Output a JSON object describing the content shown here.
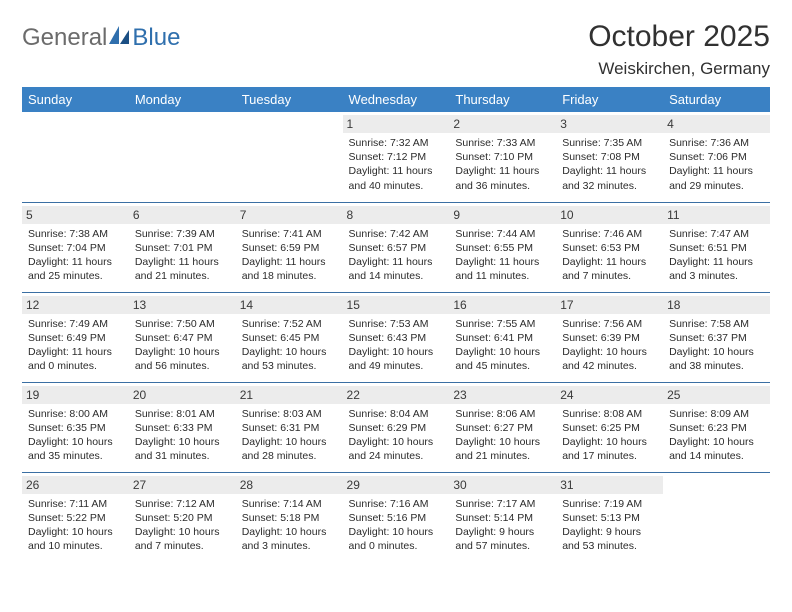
{
  "brand": {
    "part1": "General",
    "part2": "Blue"
  },
  "title": "October 2025",
  "location": "Weiskirchen, Germany",
  "colors": {
    "header_bg": "#3a81c4",
    "row_border": "#3a6fa3",
    "daynum_bg": "#ececec",
    "text": "#2b2b2b",
    "logo_gray": "#6b6b6b",
    "logo_blue": "#2f6fad"
  },
  "day_headers": [
    "Sunday",
    "Monday",
    "Tuesday",
    "Wednesday",
    "Thursday",
    "Friday",
    "Saturday"
  ],
  "weeks": [
    [
      {
        "n": "",
        "sr": "",
        "ss": "",
        "dl": ""
      },
      {
        "n": "",
        "sr": "",
        "ss": "",
        "dl": ""
      },
      {
        "n": "",
        "sr": "",
        "ss": "",
        "dl": ""
      },
      {
        "n": "1",
        "sr": "7:32 AM",
        "ss": "7:12 PM",
        "dl": "11 hours and 40 minutes."
      },
      {
        "n": "2",
        "sr": "7:33 AM",
        "ss": "7:10 PM",
        "dl": "11 hours and 36 minutes."
      },
      {
        "n": "3",
        "sr": "7:35 AM",
        "ss": "7:08 PM",
        "dl": "11 hours and 32 minutes."
      },
      {
        "n": "4",
        "sr": "7:36 AM",
        "ss": "7:06 PM",
        "dl": "11 hours and 29 minutes."
      }
    ],
    [
      {
        "n": "5",
        "sr": "7:38 AM",
        "ss": "7:04 PM",
        "dl": "11 hours and 25 minutes."
      },
      {
        "n": "6",
        "sr": "7:39 AM",
        "ss": "7:01 PM",
        "dl": "11 hours and 21 minutes."
      },
      {
        "n": "7",
        "sr": "7:41 AM",
        "ss": "6:59 PM",
        "dl": "11 hours and 18 minutes."
      },
      {
        "n": "8",
        "sr": "7:42 AM",
        "ss": "6:57 PM",
        "dl": "11 hours and 14 minutes."
      },
      {
        "n": "9",
        "sr": "7:44 AM",
        "ss": "6:55 PM",
        "dl": "11 hours and 11 minutes."
      },
      {
        "n": "10",
        "sr": "7:46 AM",
        "ss": "6:53 PM",
        "dl": "11 hours and 7 minutes."
      },
      {
        "n": "11",
        "sr": "7:47 AM",
        "ss": "6:51 PM",
        "dl": "11 hours and 3 minutes."
      }
    ],
    [
      {
        "n": "12",
        "sr": "7:49 AM",
        "ss": "6:49 PM",
        "dl": "11 hours and 0 minutes."
      },
      {
        "n": "13",
        "sr": "7:50 AM",
        "ss": "6:47 PM",
        "dl": "10 hours and 56 minutes."
      },
      {
        "n": "14",
        "sr": "7:52 AM",
        "ss": "6:45 PM",
        "dl": "10 hours and 53 minutes."
      },
      {
        "n": "15",
        "sr": "7:53 AM",
        "ss": "6:43 PM",
        "dl": "10 hours and 49 minutes."
      },
      {
        "n": "16",
        "sr": "7:55 AM",
        "ss": "6:41 PM",
        "dl": "10 hours and 45 minutes."
      },
      {
        "n": "17",
        "sr": "7:56 AM",
        "ss": "6:39 PM",
        "dl": "10 hours and 42 minutes."
      },
      {
        "n": "18",
        "sr": "7:58 AM",
        "ss": "6:37 PM",
        "dl": "10 hours and 38 minutes."
      }
    ],
    [
      {
        "n": "19",
        "sr": "8:00 AM",
        "ss": "6:35 PM",
        "dl": "10 hours and 35 minutes."
      },
      {
        "n": "20",
        "sr": "8:01 AM",
        "ss": "6:33 PM",
        "dl": "10 hours and 31 minutes."
      },
      {
        "n": "21",
        "sr": "8:03 AM",
        "ss": "6:31 PM",
        "dl": "10 hours and 28 minutes."
      },
      {
        "n": "22",
        "sr": "8:04 AM",
        "ss": "6:29 PM",
        "dl": "10 hours and 24 minutes."
      },
      {
        "n": "23",
        "sr": "8:06 AM",
        "ss": "6:27 PM",
        "dl": "10 hours and 21 minutes."
      },
      {
        "n": "24",
        "sr": "8:08 AM",
        "ss": "6:25 PM",
        "dl": "10 hours and 17 minutes."
      },
      {
        "n": "25",
        "sr": "8:09 AM",
        "ss": "6:23 PM",
        "dl": "10 hours and 14 minutes."
      }
    ],
    [
      {
        "n": "26",
        "sr": "7:11 AM",
        "ss": "5:22 PM",
        "dl": "10 hours and 10 minutes."
      },
      {
        "n": "27",
        "sr": "7:12 AM",
        "ss": "5:20 PM",
        "dl": "10 hours and 7 minutes."
      },
      {
        "n": "28",
        "sr": "7:14 AM",
        "ss": "5:18 PM",
        "dl": "10 hours and 3 minutes."
      },
      {
        "n": "29",
        "sr": "7:16 AM",
        "ss": "5:16 PM",
        "dl": "10 hours and 0 minutes."
      },
      {
        "n": "30",
        "sr": "7:17 AM",
        "ss": "5:14 PM",
        "dl": "9 hours and 57 minutes."
      },
      {
        "n": "31",
        "sr": "7:19 AM",
        "ss": "5:13 PM",
        "dl": "9 hours and 53 minutes."
      },
      {
        "n": "",
        "sr": "",
        "ss": "",
        "dl": ""
      }
    ]
  ],
  "labels": {
    "sunrise": "Sunrise: ",
    "sunset": "Sunset: ",
    "daylight": "Daylight: "
  }
}
